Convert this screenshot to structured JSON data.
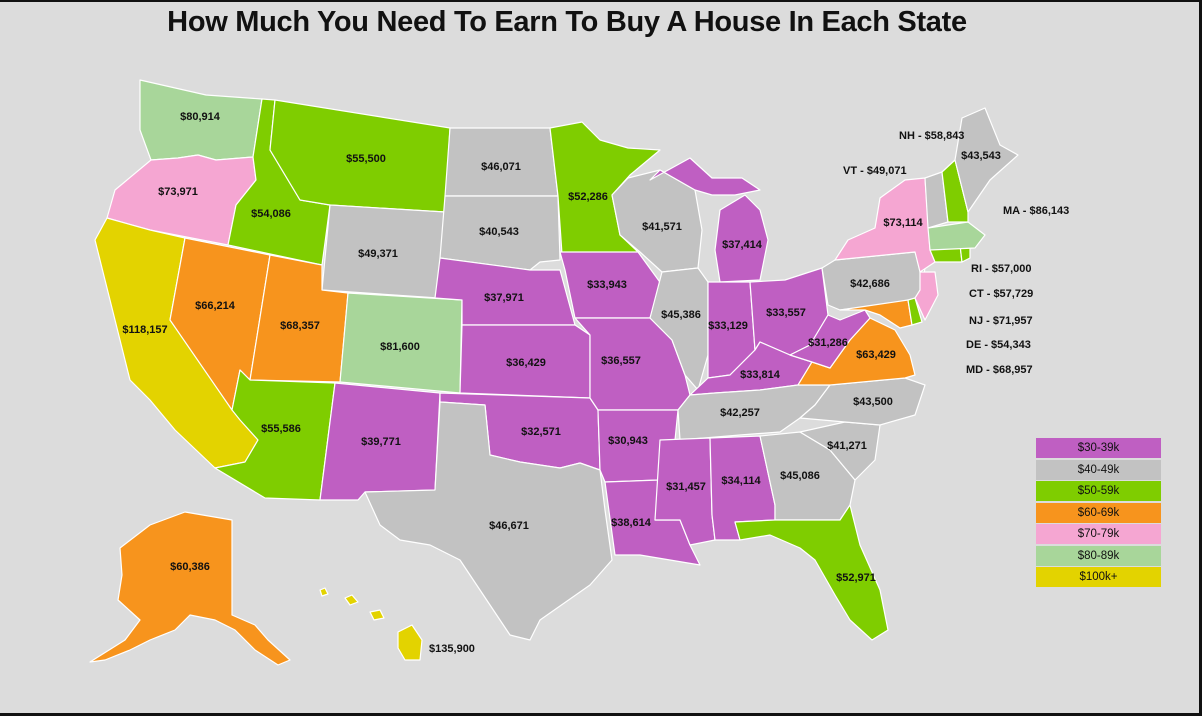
{
  "title": "How Much You Need To Earn To Buy A House In Each State",
  "colors": {
    "30-39k": "#bf5fc2",
    "40-49k": "#c2c2c2",
    "50-59k": "#7fcd00",
    "60-69k": "#f7941d",
    "70-79k": "#f5a6d2",
    "80-89k": "#a8d69a",
    "100k+": "#e3d300"
  },
  "legend": [
    {
      "label": "$30-39k",
      "bracket": "30-39k"
    },
    {
      "label": "$40-49k",
      "bracket": "40-49k"
    },
    {
      "label": "$50-59k",
      "bracket": "50-59k"
    },
    {
      "label": "$60-69k",
      "bracket": "60-69k"
    },
    {
      "label": "$70-79k",
      "bracket": "70-79k"
    },
    {
      "label": "$80-89k",
      "bracket": "80-89k"
    },
    {
      "label": "$100k+",
      "bracket": "100k+"
    }
  ],
  "states": {
    "WA": {
      "value": "$80,914",
      "bracket": "80-89k"
    },
    "OR": {
      "value": "$73,971",
      "bracket": "70-79k"
    },
    "CA": {
      "value": "$118,157",
      "bracket": "100k+"
    },
    "NV": {
      "value": "$66,214",
      "bracket": "60-69k"
    },
    "ID": {
      "value": "$54,086",
      "bracket": "50-59k"
    },
    "MT": {
      "value": "$55,500",
      "bracket": "50-59k"
    },
    "WY": {
      "value": "$49,371",
      "bracket": "40-49k"
    },
    "UT": {
      "value": "$68,357",
      "bracket": "60-69k"
    },
    "AZ": {
      "value": "$55,586",
      "bracket": "50-59k"
    },
    "CO": {
      "value": "$81,600",
      "bracket": "80-89k"
    },
    "NM": {
      "value": "$39,771",
      "bracket": "30-39k"
    },
    "ND": {
      "value": "$46,071",
      "bracket": "40-49k"
    },
    "SD": {
      "value": "$40,543",
      "bracket": "40-49k"
    },
    "NE": {
      "value": "$37,971",
      "bracket": "30-39k"
    },
    "KS": {
      "value": "$36,429",
      "bracket": "30-39k"
    },
    "OK": {
      "value": "$32,571",
      "bracket": "30-39k"
    },
    "TX": {
      "value": "$46,671",
      "bracket": "40-49k"
    },
    "MN": {
      "value": "$52,286",
      "bracket": "50-59k"
    },
    "IA": {
      "value": "$33,943",
      "bracket": "30-39k"
    },
    "MO": {
      "value": "$36,557",
      "bracket": "30-39k"
    },
    "AR": {
      "value": "$30,943",
      "bracket": "30-39k"
    },
    "LA": {
      "value": "$38,614",
      "bracket": "30-39k"
    },
    "WI": {
      "value": "$41,571",
      "bracket": "40-49k"
    },
    "IL": {
      "value": "$45,386",
      "bracket": "40-49k"
    },
    "MI": {
      "value": "$37,414",
      "bracket": "30-39k"
    },
    "IN": {
      "value": "$33,129",
      "bracket": "30-39k"
    },
    "OH": {
      "value": "$33,557",
      "bracket": "30-39k"
    },
    "KY": {
      "value": "$33,814",
      "bracket": "30-39k"
    },
    "TN": {
      "value": "$42,257",
      "bracket": "40-49k"
    },
    "MS": {
      "value": "$31,457",
      "bracket": "30-39k"
    },
    "AL": {
      "value": "$34,114",
      "bracket": "30-39k"
    },
    "GA": {
      "value": "$45,086",
      "bracket": "40-49k"
    },
    "FL": {
      "value": "$52,971",
      "bracket": "50-59k"
    },
    "SC": {
      "value": "$41,271",
      "bracket": "40-49k"
    },
    "NC": {
      "value": "$43,500",
      "bracket": "40-49k"
    },
    "VA": {
      "value": "$63,429",
      "bracket": "60-69k"
    },
    "WV": {
      "value": "$31,286",
      "bracket": "30-39k"
    },
    "PA": {
      "value": "$42,686",
      "bracket": "40-49k"
    },
    "NY": {
      "value": "$73,114",
      "bracket": "70-79k"
    },
    "ME": {
      "value": "$43,543",
      "bracket": "40-49k"
    },
    "NH": {
      "value": "$58,843",
      "bracket": "50-59k"
    },
    "VT": {
      "value": "$49,071",
      "bracket": "40-49k"
    },
    "MA": {
      "value": "$86,143",
      "bracket": "80-89k"
    },
    "RI": {
      "value": "$57,000",
      "bracket": "50-59k"
    },
    "CT": {
      "value": "$57,729",
      "bracket": "50-59k"
    },
    "NJ": {
      "value": "$71,957",
      "bracket": "70-79k"
    },
    "DE": {
      "value": "$54,343",
      "bracket": "50-59k"
    },
    "MD": {
      "value": "$68,957",
      "bracket": "60-69k"
    },
    "AK": {
      "value": "$60,386",
      "bracket": "60-69k"
    },
    "HI": {
      "value": "$135,900",
      "bracket": "100k+"
    }
  },
  "side_labels": [
    {
      "state": "NH",
      "text": "NH - $58,843"
    },
    {
      "state": "VT",
      "text": "VT - $49,071"
    },
    {
      "state": "MA",
      "text": "MA - $86,143"
    },
    {
      "state": "RI",
      "text": "RI - $57,000"
    },
    {
      "state": "CT",
      "text": "CT - $57,729"
    },
    {
      "state": "NJ",
      "text": "NJ - $71,957"
    },
    {
      "state": "DE",
      "text": "DE - $54,343"
    },
    {
      "state": "MD",
      "text": "MD - $68,957"
    }
  ]
}
